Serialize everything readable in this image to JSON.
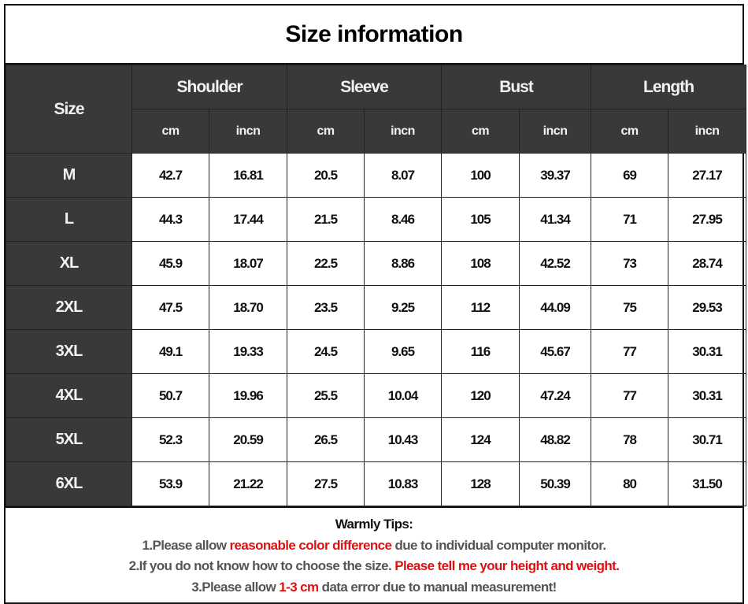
{
  "title": "Size information",
  "table": {
    "size_header": "Size",
    "groups": [
      "Shoulder",
      "Sleeve",
      "Bust",
      "Length"
    ],
    "units": [
      "cm",
      "incn"
    ],
    "rows": [
      {
        "size": "M",
        "values": [
          "42.7",
          "16.81",
          "20.5",
          "8.07",
          "100",
          "39.37",
          "69",
          "27.17"
        ]
      },
      {
        "size": "L",
        "values": [
          "44.3",
          "17.44",
          "21.5",
          "8.46",
          "105",
          "41.34",
          "71",
          "27.95"
        ]
      },
      {
        "size": "XL",
        "values": [
          "45.9",
          "18.07",
          "22.5",
          "8.86",
          "108",
          "42.52",
          "73",
          "28.74"
        ]
      },
      {
        "size": "2XL",
        "values": [
          "47.5",
          "18.70",
          "23.5",
          "9.25",
          "112",
          "44.09",
          "75",
          "29.53"
        ]
      },
      {
        "size": "3XL",
        "values": [
          "49.1",
          "19.33",
          "24.5",
          "9.65",
          "116",
          "45.67",
          "77",
          "30.31"
        ]
      },
      {
        "size": "4XL",
        "values": [
          "50.7",
          "19.96",
          "25.5",
          "10.04",
          "120",
          "47.24",
          "77",
          "30.31"
        ]
      },
      {
        "size": "5XL",
        "values": [
          "52.3",
          "20.59",
          "26.5",
          "10.43",
          "124",
          "48.82",
          "78",
          "30.71"
        ]
      },
      {
        "size": "6XL",
        "values": [
          "53.9",
          "21.22",
          "27.5",
          "10.83",
          "128",
          "50.39",
          "80",
          "31.50"
        ]
      }
    ]
  },
  "tips": {
    "heading": "Warmly Tips:",
    "tip1": {
      "pre": "1.Please allow ",
      "highlight": "reasonable color difference",
      "post": " due to individual computer monitor."
    },
    "tip2": {
      "pre": "2.If you do not know how to choose the size. ",
      "highlight": "Please tell me your height and weight.",
      "post": ""
    },
    "tip3": {
      "pre": "3.Please allow ",
      "highlight": "1-3 cm",
      "post": " data error due to manual measurement!"
    }
  },
  "colors": {
    "header_bg": "#3a3838",
    "highlight": "#e01010",
    "tip_text": "#555555"
  }
}
